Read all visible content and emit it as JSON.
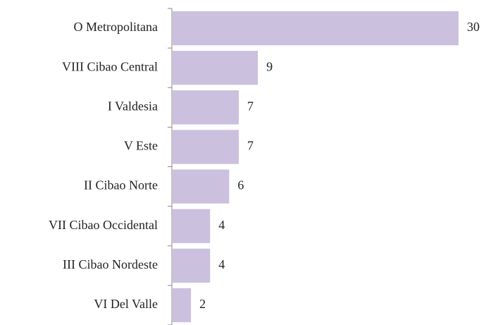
{
  "chart_data": {
    "type": "hbar",
    "categories": [
      "O Metropolitana",
      "VIII Cibao Central",
      "I Valdesia",
      "V Este",
      "II Cibao Norte",
      "VII Cibao Occidental",
      "III Cibao Nordeste",
      "VI Del Valle"
    ],
    "values": [
      30,
      9,
      7,
      7,
      6,
      4,
      4,
      2
    ],
    "color": "#cbc0dd"
  }
}
